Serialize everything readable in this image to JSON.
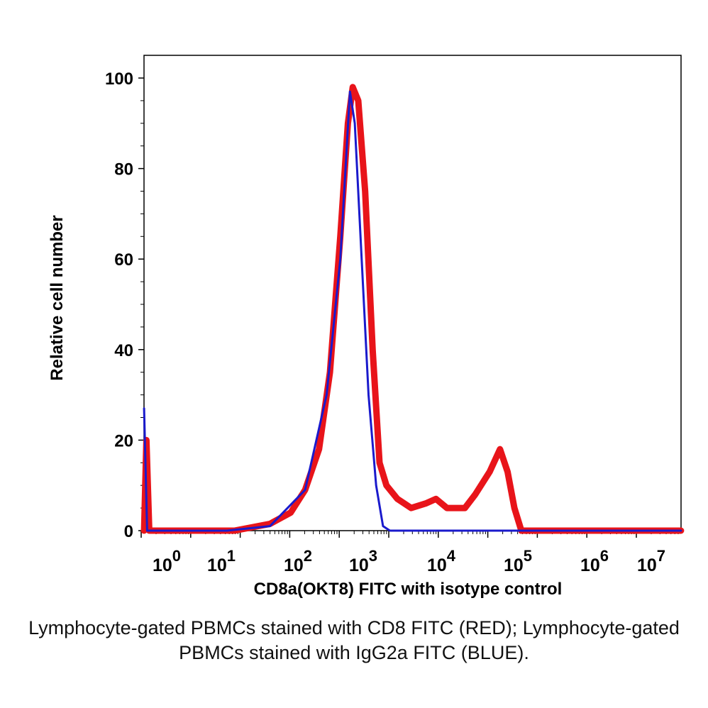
{
  "chart_data": {
    "type": "line",
    "title": "",
    "xlabel": "CD8a(OKT8) FITC with isotype control",
    "ylabel": "Relative cell number",
    "x_scale": "log",
    "xlim": [
      0.37,
      23442288
    ],
    "ylim": [
      0,
      100
    ],
    "grid": false,
    "x_ticks": [
      {
        "base": "10",
        "exp": "0"
      },
      {
        "base": "10",
        "exp": "1"
      },
      {
        "base": "10",
        "exp": "2"
      },
      {
        "base": "10",
        "exp": "3"
      },
      {
        "base": "10",
        "exp": "4"
      },
      {
        "base": "10",
        "exp": "5"
      },
      {
        "base": "10",
        "exp": "6"
      },
      {
        "base": "10",
        "exp": "7"
      }
    ],
    "y_ticks": [
      "0",
      "20",
      "40",
      "60",
      "80",
      "100"
    ],
    "series": [
      {
        "color": "#e8141a",
        "x": [
          0.37,
          0.4,
          0.44,
          7.6,
          25,
          50,
          81,
          129,
          186,
          263,
          339,
          398,
          479,
          603,
          776,
          977,
          1230,
          1778,
          2818,
          4571,
          6457,
          9333,
          16982,
          23988,
          38905,
          54954,
          70795,
          89125,
          112202,
          23442288
        ],
        "y": [
          0,
          20,
          0,
          0,
          1.5,
          4,
          9,
          18,
          35,
          65,
          90,
          98,
          95,
          75,
          40,
          15,
          10,
          7,
          5,
          6,
          7,
          5,
          5,
          8,
          13,
          18,
          13,
          5,
          0,
          0
        ]
      },
      {
        "color": "#1a1acc",
        "x": [
          0.37,
          0.41,
          5.9,
          25,
          81,
          166,
          263,
          363,
          426,
          537,
          676,
          871,
          1096,
          1380,
          23442288
        ],
        "y": [
          27,
          0,
          0,
          1,
          9,
          30,
          60,
          97,
          90,
          60,
          30,
          10,
          1,
          0,
          0
        ]
      }
    ]
  },
  "caption": "Lymphocyte-gated PBMCs stained with CD8 FITC (RED); Lymphocyte-gated PBMCs stained with IgG2a FITC (BLUE)."
}
